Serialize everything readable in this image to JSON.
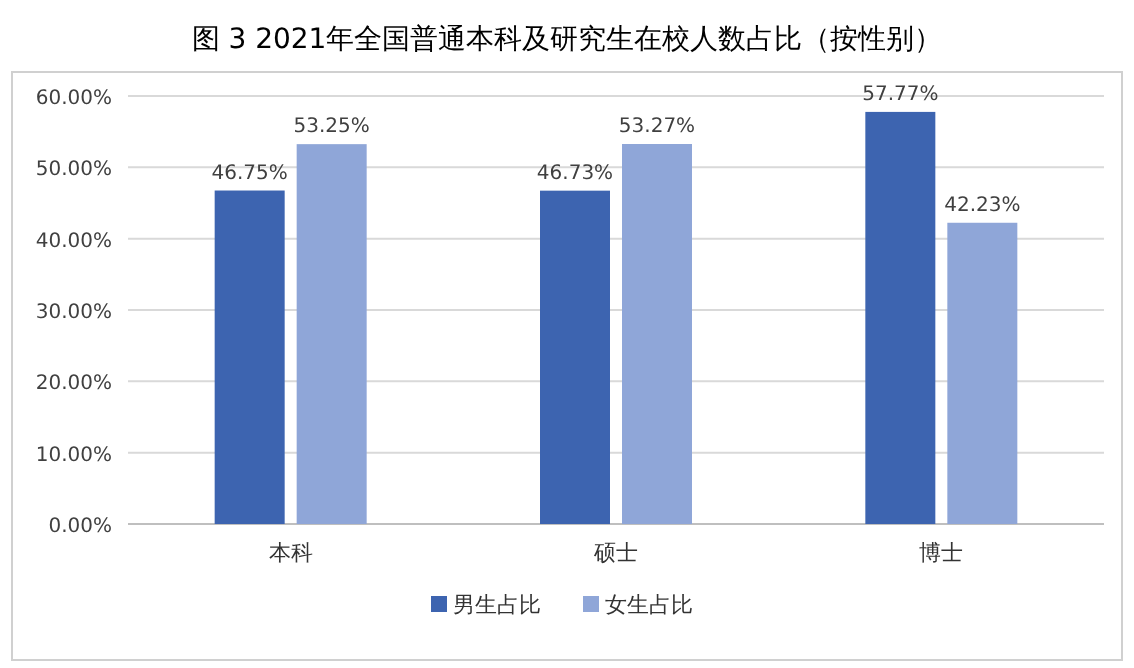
{
  "chart_data": {
    "type": "bar",
    "title": "图 3 2021年全国普通本科及研究生在校人数占比（按性别）",
    "categories": [
      "本科",
      "硕士",
      "博士"
    ],
    "series": [
      {
        "name": "男生占比",
        "color": "#3d64b0",
        "values": [
          46.75,
          46.73,
          57.77
        ],
        "value_labels": [
          "46.75%",
          "46.73%",
          "57.77%"
        ]
      },
      {
        "name": "女生占比",
        "color": "#8fa6d8",
        "values": [
          53.25,
          53.27,
          42.23
        ],
        "value_labels": [
          "53.25%",
          "53.27%",
          "42.23%"
        ]
      }
    ],
    "ylim": [
      0,
      60
    ],
    "yticks": [
      {
        "value": 0,
        "label": "0.00%"
      },
      {
        "value": 10,
        "label": "10.00%"
      },
      {
        "value": 20,
        "label": "20.00%"
      },
      {
        "value": 30,
        "label": "30.00%"
      },
      {
        "value": 40,
        "label": "40.00%"
      },
      {
        "value": 50,
        "label": "50.00%"
      },
      {
        "value": 60,
        "label": "60.00%"
      }
    ],
    "grid": "y",
    "legend": "bottom"
  }
}
